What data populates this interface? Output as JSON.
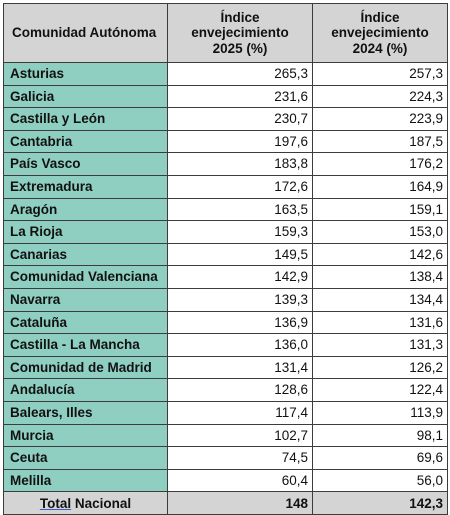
{
  "table": {
    "headers": {
      "region": "Comunidad Autónoma",
      "col2025": [
        "Índice",
        "envejecimiento",
        "2025 (%)"
      ],
      "col2024": [
        "Índice",
        "envejecimiento",
        "2024 (%)"
      ]
    },
    "rows": [
      {
        "region": "Asturias",
        "v2025": "265,3",
        "v2024": "257,3"
      },
      {
        "region": "Galicia",
        "v2025": "231,6",
        "v2024": "224,3"
      },
      {
        "region": "Castilla y León",
        "v2025": "230,7",
        "v2024": "223,9"
      },
      {
        "region": "Cantabria",
        "v2025": "197,6",
        "v2024": "187,5"
      },
      {
        "region": "País Vasco",
        "v2025": "183,8",
        "v2024": "176,2"
      },
      {
        "region": "Extremadura",
        "v2025": "172,6",
        "v2024": "164,9"
      },
      {
        "region": "Aragón",
        "v2025": "163,5",
        "v2024": "159,1"
      },
      {
        "region": "La Rioja",
        "v2025": "159,3",
        "v2024": "153,0"
      },
      {
        "region": "Canarias",
        "v2025": "149,5",
        "v2024": "142,6"
      },
      {
        "region": "Comunidad Valenciana",
        "v2025": "142,9",
        "v2024": "138,4"
      },
      {
        "region": "Navarra",
        "v2025": "139,3",
        "v2024": "134,4"
      },
      {
        "region": "Cataluña",
        "v2025": "136,9",
        "v2024": "131,6"
      },
      {
        "region": "Castilla - La Mancha",
        "v2025": "136,0",
        "v2024": "131,3"
      },
      {
        "region": "Comunidad de Madrid",
        "v2025": "131,4",
        "v2024": "126,2"
      },
      {
        "region": "Andalucía",
        "v2025": "128,6",
        "v2024": "122,4"
      },
      {
        "region": "Balears, Illes",
        "v2025": "117,4",
        "v2024": "113,9"
      },
      {
        "region": "Murcia",
        "v2025": "102,7",
        "v2024": "98,1"
      },
      {
        "region": "Ceuta",
        "v2025": "74,5",
        "v2024": "69,6"
      },
      {
        "region": "Melilla",
        "v2025": "60,4",
        "v2024": "56,0"
      }
    ],
    "total": {
      "label_word1": "Total",
      "label_word2": "Nacional",
      "v2025": "148",
      "v2024": "142,3"
    }
  }
}
